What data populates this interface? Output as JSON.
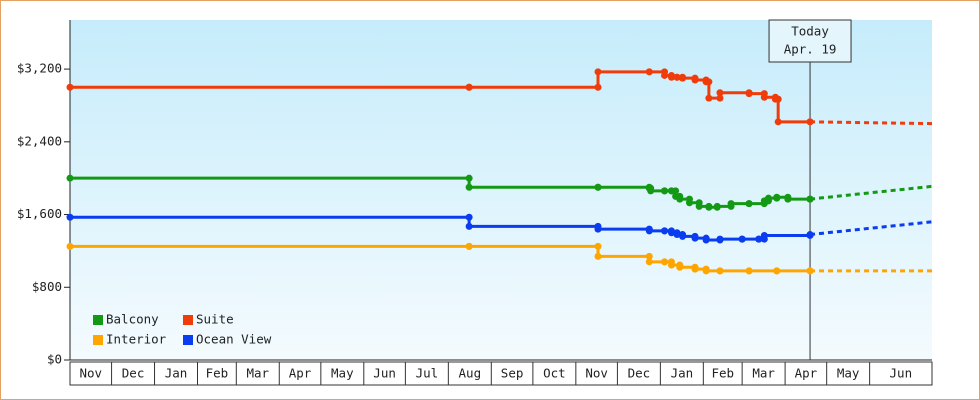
{
  "chart_data": {
    "type": "step-line",
    "ylim": [
      0,
      3740
    ],
    "yticks": [
      {
        "value": 0,
        "label": "$0"
      },
      {
        "value": 800,
        "label": "$800"
      },
      {
        "value": 1600,
        "label": "$1,600"
      },
      {
        "value": 2400,
        "label": "$2,400"
      },
      {
        "value": 3200,
        "label": "$3,200"
      }
    ],
    "xlim": [
      0,
      622
    ],
    "xticks": [
      {
        "value": 0,
        "label": "Nov"
      },
      {
        "value": 30,
        "label": "Dec"
      },
      {
        "value": 61,
        "label": "Jan"
      },
      {
        "value": 92,
        "label": "Feb"
      },
      {
        "value": 120,
        "label": "Mar"
      },
      {
        "value": 151,
        "label": "Apr"
      },
      {
        "value": 181,
        "label": "May"
      },
      {
        "value": 212,
        "label": "Jun"
      },
      {
        "value": 242,
        "label": "Jul"
      },
      {
        "value": 273,
        "label": "Aug"
      },
      {
        "value": 304,
        "label": "Sep"
      },
      {
        "value": 334,
        "label": "Oct"
      },
      {
        "value": 365,
        "label": "Nov"
      },
      {
        "value": 395,
        "label": "Dec"
      },
      {
        "value": 426,
        "label": "Jan"
      },
      {
        "value": 457,
        "label": "Feb"
      },
      {
        "value": 485,
        "label": "Mar"
      },
      {
        "value": 516,
        "label": "Apr"
      },
      {
        "value": 546,
        "label": "May"
      },
      {
        "value": 577,
        "label": "Jun"
      }
    ],
    "today": {
      "x": 534,
      "label": [
        "Today",
        "Apr. 19"
      ]
    },
    "legend": "lower-left",
    "series": [
      {
        "name": "Balcony",
        "color": "#149914",
        "x": [
          0,
          288,
          381,
          418,
          419,
          429,
          434,
          437,
          440,
          447,
          454,
          461,
          467,
          477,
          490,
          501,
          504,
          510,
          518,
          534
        ],
        "values": [
          2000,
          1900,
          1900,
          1890,
          1860,
          1860,
          1860,
          1800,
          1770,
          1730,
          1690,
          1680,
          1690,
          1720,
          1720,
          1750,
          1780,
          1790,
          1770,
          1770
        ],
        "forecast": 1910
      },
      {
        "name": "Suite",
        "color": "#f03c0a",
        "x": [
          0,
          288,
          381,
          418,
          429,
          434,
          438,
          442,
          451,
          459,
          461,
          469,
          490,
          501,
          509,
          511,
          534
        ],
        "values": [
          3000,
          3000,
          3170,
          3170,
          3130,
          3110,
          3110,
          3100,
          3080,
          3060,
          2880,
          2940,
          2930,
          2890,
          2870,
          2620,
          2620
        ],
        "forecast": 2600
      },
      {
        "name": "Interior",
        "color": "#ffa500",
        "x": [
          0,
          288,
          381,
          418,
          429,
          434,
          440,
          451,
          459,
          469,
          490,
          510,
          534
        ],
        "values": [
          1250,
          1250,
          1140,
          1080,
          1080,
          1045,
          1020,
          1000,
          980,
          980,
          980,
          980,
          980
        ],
        "forecast": 980
      },
      {
        "name": "Ocean View",
        "color": "#0a3cf0",
        "x": [
          0,
          288,
          381,
          418,
          429,
          434,
          438,
          442,
          451,
          459,
          469,
          485,
          497,
          501,
          534
        ],
        "values": [
          1570,
          1470,
          1440,
          1420,
          1420,
          1400,
          1380,
          1360,
          1340,
          1320,
          1330,
          1330,
          1330,
          1370,
          1380
        ],
        "forecast": 1520
      }
    ]
  }
}
